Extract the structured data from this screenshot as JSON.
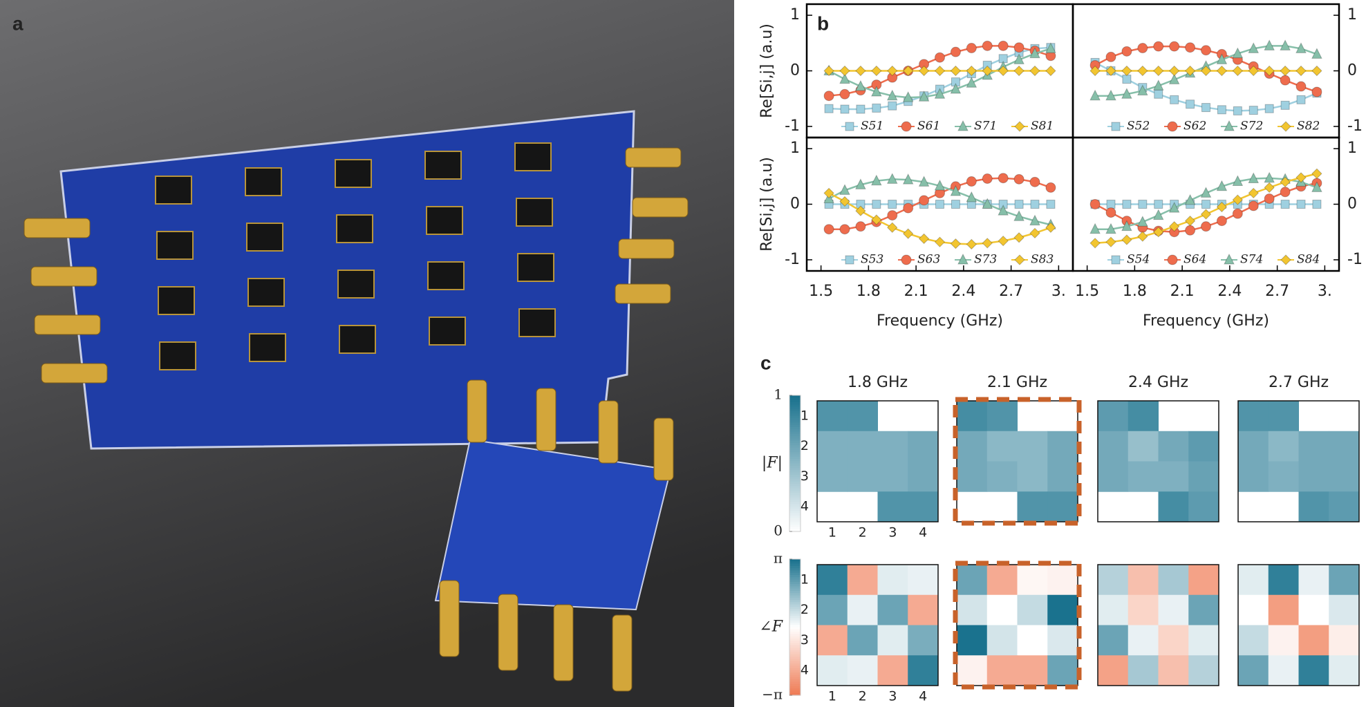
{
  "panel_labels": [
    "a",
    "b",
    "c"
  ],
  "chart_data": [
    {
      "type": "line",
      "ylabel": "Re[Si,j] (a.u)",
      "yaxis_side": "left",
      "xlim": [
        1.41,
        3.09
      ],
      "ylim": [
        -1.2,
        1.2
      ],
      "yticks": [
        -1,
        0,
        1
      ],
      "x": [
        1.55,
        1.65,
        1.75,
        1.85,
        1.95,
        2.05,
        2.15,
        2.25,
        2.35,
        2.45,
        2.55,
        2.65,
        2.75,
        2.85,
        2.95
      ],
      "series": [
        {
          "name": "S51",
          "color": "#9fd0e0",
          "marker": "square",
          "values": [
            -0.68,
            -0.69,
            -0.69,
            -0.67,
            -0.63,
            -0.55,
            -0.45,
            -0.33,
            -0.2,
            -0.05,
            0.1,
            0.22,
            0.33,
            0.4,
            0.42
          ]
        },
        {
          "name": "S61",
          "color": "#ee6c4d",
          "marker": "circle",
          "values": [
            -0.45,
            -0.42,
            -0.35,
            -0.25,
            -0.12,
            0.0,
            0.12,
            0.24,
            0.34,
            0.41,
            0.45,
            0.45,
            0.42,
            0.36,
            0.27
          ]
        },
        {
          "name": "S71",
          "color": "#86bfa9",
          "marker": "triangle",
          "values": [
            0.0,
            -0.15,
            -0.28,
            -0.38,
            -0.45,
            -0.48,
            -0.47,
            -0.42,
            -0.33,
            -0.22,
            -0.08,
            0.07,
            0.2,
            0.31,
            0.4
          ]
        },
        {
          "name": "S81",
          "color": "#f2c530",
          "marker": "diamond",
          "values": [
            0,
            0,
            0,
            0,
            0,
            0,
            0,
            0,
            0,
            0,
            0,
            0,
            0,
            0,
            0
          ]
        }
      ]
    },
    {
      "type": "line",
      "yaxis_side": "right",
      "xlim": [
        1.41,
        3.09
      ],
      "ylim": [
        -1.2,
        1.2
      ],
      "yticks": [
        -1,
        0,
        1
      ],
      "x": [
        1.55,
        1.65,
        1.75,
        1.85,
        1.95,
        2.05,
        2.15,
        2.25,
        2.35,
        2.45,
        2.55,
        2.65,
        2.75,
        2.85,
        2.95
      ],
      "series": [
        {
          "name": "S52",
          "color": "#9fd0e0",
          "marker": "square",
          "values": [
            0.15,
            0.0,
            -0.15,
            -0.3,
            -0.42,
            -0.52,
            -0.6,
            -0.66,
            -0.7,
            -0.72,
            -0.71,
            -0.68,
            -0.62,
            -0.52,
            -0.4
          ]
        },
        {
          "name": "S62",
          "color": "#ee6c4d",
          "marker": "circle",
          "values": [
            0.1,
            0.25,
            0.35,
            0.41,
            0.44,
            0.44,
            0.42,
            0.37,
            0.3,
            0.2,
            0.08,
            -0.05,
            -0.17,
            -0.28,
            -0.38
          ]
        },
        {
          "name": "S72",
          "color": "#86bfa9",
          "marker": "triangle",
          "values": [
            -0.45,
            -0.45,
            -0.42,
            -0.36,
            -0.27,
            -0.16,
            -0.04,
            0.08,
            0.2,
            0.31,
            0.4,
            0.45,
            0.45,
            0.4,
            0.3
          ]
        },
        {
          "name": "S82",
          "color": "#f2c530",
          "marker": "diamond",
          "values": [
            0,
            0,
            0,
            0,
            0,
            0,
            0,
            0,
            0,
            0,
            0,
            0,
            0,
            0,
            0
          ]
        }
      ]
    },
    {
      "type": "line",
      "ylabel": "Re[Si,j] (a.u)",
      "xlabel": "Frequency (GHz)",
      "yaxis_side": "left",
      "xlim": [
        1.41,
        3.09
      ],
      "ylim": [
        -1.2,
        1.2
      ],
      "yticks": [
        -1,
        0,
        1
      ],
      "xticks": [
        1.5,
        1.8,
        2.1,
        2.4,
        2.7,
        {
          "value": 3,
          "label": "3."
        }
      ],
      "x": [
        1.55,
        1.65,
        1.75,
        1.85,
        1.95,
        2.05,
        2.15,
        2.25,
        2.35,
        2.45,
        2.55,
        2.65,
        2.75,
        2.85,
        2.95
      ],
      "series": [
        {
          "name": "S53",
          "color": "#9fd0e0",
          "marker": "square",
          "values": [
            0,
            0,
            0,
            0,
            0,
            0,
            0,
            0,
            0,
            0,
            0,
            0,
            0,
            0,
            0
          ]
        },
        {
          "name": "S63",
          "color": "#ee6c4d",
          "marker": "circle",
          "values": [
            -0.45,
            -0.45,
            -0.4,
            -0.32,
            -0.2,
            -0.07,
            0.07,
            0.2,
            0.32,
            0.41,
            0.46,
            0.47,
            0.45,
            0.4,
            0.3
          ]
        },
        {
          "name": "S73",
          "color": "#86bfa9",
          "marker": "triangle",
          "values": [
            0.1,
            0.25,
            0.35,
            0.42,
            0.45,
            0.44,
            0.4,
            0.33,
            0.23,
            0.12,
            0.0,
            -0.12,
            -0.22,
            -0.3,
            -0.37
          ]
        },
        {
          "name": "S83",
          "color": "#f2c530",
          "marker": "diamond",
          "values": [
            0.2,
            0.05,
            -0.12,
            -0.28,
            -0.42,
            -0.53,
            -0.62,
            -0.68,
            -0.71,
            -0.72,
            -0.7,
            -0.66,
            -0.6,
            -0.52,
            -0.42
          ]
        }
      ]
    },
    {
      "type": "line",
      "xlabel": "Frequency (GHz)",
      "yaxis_side": "right",
      "xlim": [
        1.41,
        3.09
      ],
      "ylim": [
        -1.2,
        1.2
      ],
      "yticks": [
        -1,
        0,
        1
      ],
      "xticks": [
        1.5,
        1.8,
        2.1,
        2.4,
        2.7,
        {
          "value": 3,
          "label": "3."
        }
      ],
      "x": [
        1.55,
        1.65,
        1.75,
        1.85,
        1.95,
        2.05,
        2.15,
        2.25,
        2.35,
        2.45,
        2.55,
        2.65,
        2.75,
        2.85,
        2.95
      ],
      "series": [
        {
          "name": "S54",
          "color": "#9fd0e0",
          "marker": "square",
          "values": [
            0,
            0,
            0,
            0,
            0,
            0,
            0,
            0,
            0,
            0,
            0,
            0,
            0,
            0,
            0
          ]
        },
        {
          "name": "S64",
          "color": "#ee6c4d",
          "marker": "circle",
          "values": [
            0.0,
            -0.15,
            -0.3,
            -0.42,
            -0.48,
            -0.5,
            -0.47,
            -0.4,
            -0.3,
            -0.17,
            -0.03,
            0.1,
            0.22,
            0.32,
            0.38
          ]
        },
        {
          "name": "S74",
          "color": "#86bfa9",
          "marker": "triangle",
          "values": [
            -0.45,
            -0.45,
            -0.4,
            -0.32,
            -0.2,
            -0.07,
            0.07,
            0.2,
            0.32,
            0.41,
            0.46,
            0.47,
            0.45,
            0.4,
            0.3
          ]
        },
        {
          "name": "S84",
          "color": "#f2c530",
          "marker": "diamond",
          "values": [
            -0.7,
            -0.68,
            -0.64,
            -0.58,
            -0.5,
            -0.4,
            -0.3,
            -0.18,
            -0.05,
            0.08,
            0.2,
            0.3,
            0.4,
            0.48,
            0.55
          ]
        }
      ]
    },
    {
      "type": "heatmap",
      "title": "1.8 GHz",
      "vlim": [
        0,
        1
      ],
      "cmap": [
        "#ffffff",
        "#17708c"
      ],
      "row_labels": [
        1,
        2,
        3,
        4
      ],
      "col_labels": [
        1,
        2,
        3,
        4
      ],
      "colorbar": {
        "label": "|F|",
        "ticks": [
          0,
          1
        ]
      },
      "values": [
        [
          0.75,
          0.75,
          null,
          null
        ],
        [
          0.55,
          0.55,
          0.55,
          0.6
        ],
        [
          0.55,
          0.55,
          0.55,
          0.6
        ],
        [
          null,
          null,
          0.75,
          0.75
        ]
      ]
    },
    {
      "type": "heatmap",
      "title": "2.1 GHz",
      "vlim": [
        0,
        1
      ],
      "cmap": [
        "#ffffff",
        "#17708c"
      ],
      "highlight_color": "#c8622a",
      "values": [
        [
          0.8,
          0.75,
          null,
          null
        ],
        [
          0.6,
          0.5,
          0.5,
          0.6
        ],
        [
          0.6,
          0.55,
          0.5,
          0.6
        ],
        [
          null,
          null,
          0.75,
          0.75
        ]
      ]
    },
    {
      "type": "heatmap",
      "title": "2.4 GHz",
      "vlim": [
        0,
        1
      ],
      "cmap": [
        "#ffffff",
        "#17708c"
      ],
      "values": [
        [
          0.7,
          0.8,
          null,
          null
        ],
        [
          0.6,
          0.45,
          0.6,
          0.7
        ],
        [
          0.6,
          0.55,
          0.55,
          0.65
        ],
        [
          null,
          null,
          0.8,
          0.7
        ]
      ]
    },
    {
      "type": "heatmap",
      "title": "2.7 GHz",
      "vlim": [
        0,
        1
      ],
      "cmap": [
        "#ffffff",
        "#17708c"
      ],
      "values": [
        [
          0.75,
          0.75,
          null,
          null
        ],
        [
          0.6,
          0.5,
          0.6,
          0.6
        ],
        [
          0.6,
          0.55,
          0.6,
          0.6
        ],
        [
          null,
          null,
          0.75,
          0.7
        ]
      ]
    },
    {
      "type": "heatmap",
      "vlim": [
        -3.14159,
        3.14159
      ],
      "cmap": [
        "#ef7a53",
        "#ffffff",
        "#17708c"
      ],
      "row_labels": [
        1,
        2,
        3,
        4
      ],
      "col_labels": [
        1,
        2,
        3,
        4
      ],
      "colorbar": {
        "label": "∠F",
        "ticks": [
          {
            "value": -3.14159,
            "label": "−π"
          },
          {
            "value": 3.14159,
            "label": "π"
          }
        ]
      },
      "values": [
        [
          2.8,
          -2.0,
          0.4,
          0.3
        ],
        [
          2.0,
          0.3,
          2.0,
          -2.0
        ],
        [
          -2.0,
          2.0,
          0.4,
          1.8
        ],
        [
          0.4,
          0.3,
          -2.0,
          2.8
        ]
      ]
    },
    {
      "type": "heatmap",
      "vlim": [
        -3.14159,
        3.14159
      ],
      "cmap": [
        "#ef7a53",
        "#ffffff",
        "#17708c"
      ],
      "highlight_color": "#c8622a",
      "values": [
        [
          2.0,
          -2.0,
          -0.2,
          -0.3
        ],
        [
          0.6,
          0.0,
          0.8,
          3.1
        ],
        [
          3.1,
          0.6,
          0.0,
          0.5
        ],
        [
          -0.3,
          -2.0,
          -2.0,
          2.0
        ]
      ]
    },
    {
      "type": "heatmap",
      "vlim": [
        -3.14159,
        3.14159
      ],
      "cmap": [
        "#ef7a53",
        "#ffffff",
        "#17708c"
      ],
      "values": [
        [
          1.0,
          -1.5,
          1.2,
          -2.2
        ],
        [
          0.4,
          -1.0,
          0.3,
          2.0
        ],
        [
          2.0,
          0.3,
          -1.0,
          0.4
        ],
        [
          -2.2,
          1.2,
          -1.5,
          1.0
        ]
      ]
    },
    {
      "type": "heatmap",
      "vlim": [
        -3.14159,
        3.14159
      ],
      "cmap": [
        "#ef7a53",
        "#ffffff",
        "#17708c"
      ],
      "values": [
        [
          0.4,
          2.8,
          0.3,
          2.0
        ],
        [
          0.0,
          -2.3,
          0.0,
          0.5
        ],
        [
          0.8,
          -0.3,
          -2.3,
          -0.4
        ],
        [
          2.0,
          0.3,
          2.8,
          0.4
        ]
      ]
    }
  ]
}
